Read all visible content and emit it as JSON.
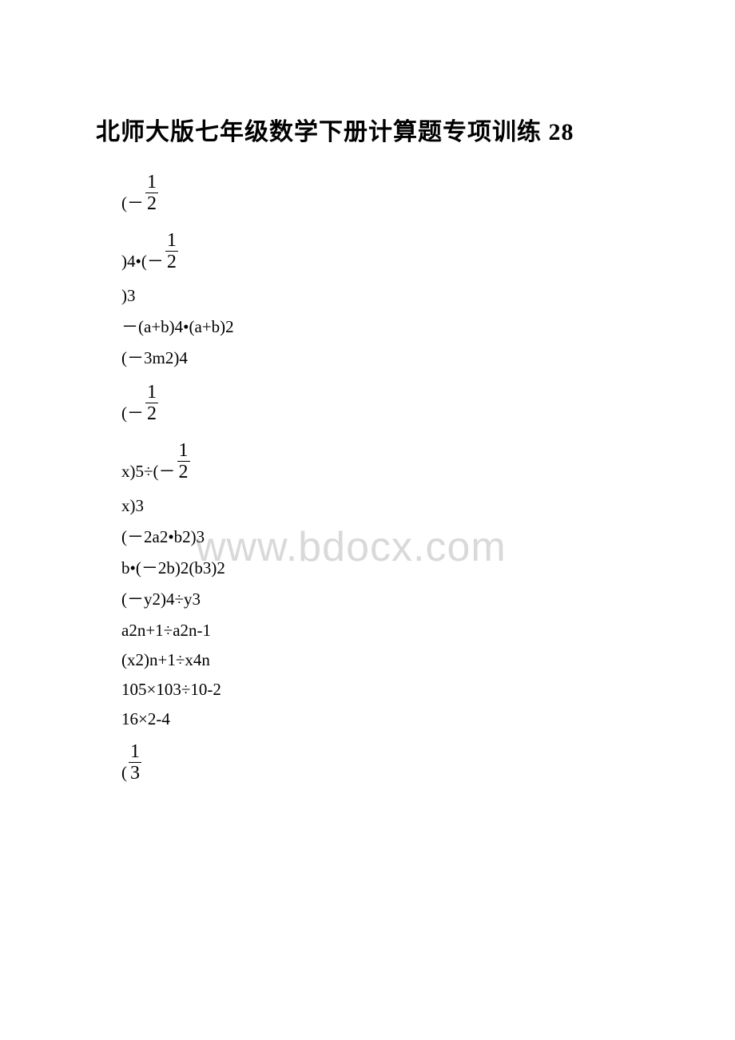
{
  "title": "北师大版七年级数学下册计算题专项训练 28",
  "watermark": "www.bdocx.com",
  "lines": {
    "l1_pre": "(－",
    "l2_pre": ")4•(－",
    "l3": ")3",
    "l4": "－(a+b)4•(a+b)2",
    "l5": "(－3m2)4",
    "l6_pre": "(－",
    "l7_pre": "x)5÷(－",
    "l8": "x)3",
    "l9": "(－2a2•b2)3",
    "l10": "b•(－2b)2(b3)2",
    "l11": "(－y2)4÷y3",
    "l12": "a2n+1÷a2n-1",
    "l13": "(x2)n+1÷x4n",
    "l14": "105×103÷10-2",
    "l15": "16×2-4",
    "l16_pre": "("
  },
  "fractions": {
    "half": {
      "num": "1",
      "den": "2"
    },
    "third": {
      "num": "1",
      "den": "3"
    }
  },
  "colors": {
    "text": "#000000",
    "background": "#ffffff",
    "watermark": "#d9d9d9"
  },
  "fonts": {
    "title_size": 30,
    "body_size": 21,
    "fraction_size": 24,
    "watermark_size": 52
  }
}
